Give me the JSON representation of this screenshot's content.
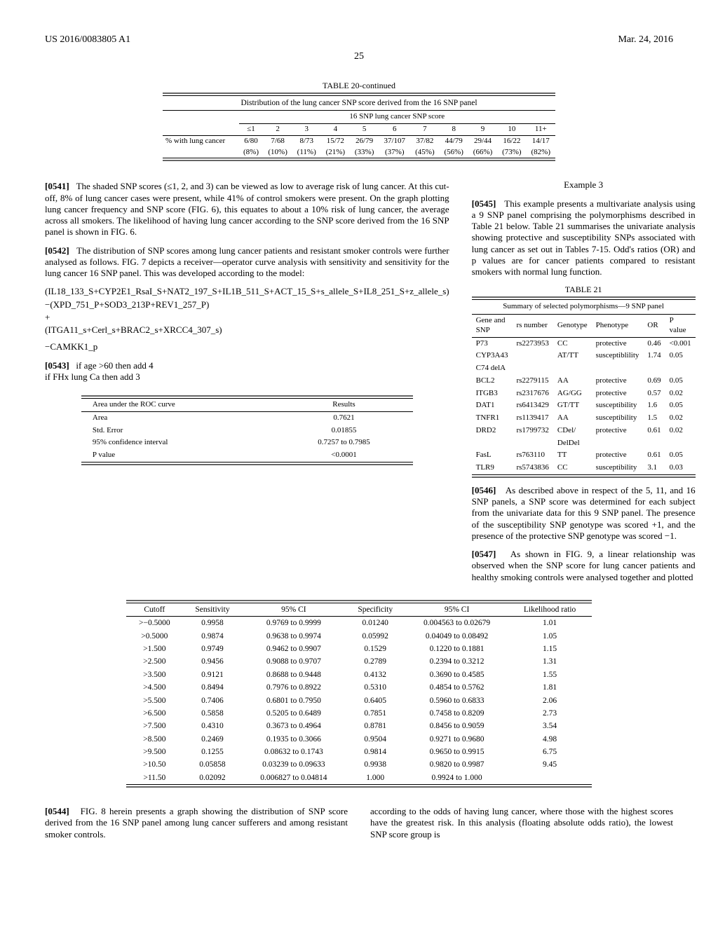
{
  "header": {
    "pub_number": "US 2016/0083805 A1",
    "pub_date": "Mar. 24, 2016"
  },
  "page_number": "25",
  "table20": {
    "title": "TABLE 20-continued",
    "caption": "Distribution of the lung cancer SNP score derived from the 16 SNP panel",
    "subhead": "16 SNP lung cancer SNP score",
    "cols": [
      "≤1",
      "2",
      "3",
      "4",
      "5",
      "6",
      "7",
      "8",
      "9",
      "10",
      "11+"
    ],
    "row_label": "% with lung cancer",
    "row_line1": [
      "6/80",
      "7/68",
      "8/73",
      "15/72",
      "26/79",
      "37/107",
      "37/82",
      "44/79",
      "29/44",
      "16/22",
      "14/17"
    ],
    "row_line2": [
      "(8%)",
      "(10%)",
      "(11%)",
      "(21%)",
      "(33%)",
      "(37%)",
      "(45%)",
      "(56%)",
      "(66%)",
      "(73%)",
      "(82%)"
    ]
  },
  "left": {
    "p0541": "The shaded SNP scores (≤1, 2, and 3) can be viewed as low to average risk of lung cancer. At this cut-off, 8% of lung cancer cases were present, while 41% of control smokers were present. On the graph plotting lung cancer frequency and SNP score (FIG. 6), this equates to about a 10% risk of lung cancer, the average across all smokers. The likelihood of having lung cancer according to the SNP score derived from the 16 SNP panel is shown in FIG. 6.",
    "p0542": "The distribution of SNP scores among lung cancer patients and resistant smoker controls were further analysed as follows. FIG. 7 depicts a receiver—operator curve analysis with sensitivity and sensitivity for the lung cancer 16 SNP panel. This was developed according to the model:",
    "model_l1": "(IL18_133_S+CYP2E1_RsaI_S+NAT2_197_S+IL1B_511_S+ACT_15_S+s_allele_S+IL8_251_S+z_allele_s)",
    "model_l2": "−(XPD_751_P+SOD3_213P+REV1_257_P)",
    "model_plus": "+",
    "model_l3": "(ITGA11_s+Cerl_s+BRAC2_s+XRCC4_307_s)",
    "model_l4": "−CAMKK1_p",
    "p0543_l1": "if age >60 then add 4",
    "p0543_l2": "if FHx lung Ca then add 3",
    "roc": {
      "title_left": "Area under the ROC curve",
      "title_right": "Results",
      "rows": [
        [
          "Area",
          "0.7621"
        ],
        [
          "Std. Error",
          "0.01855"
        ],
        [
          "95% confidence interval",
          "0.7257 to 0.7985"
        ],
        [
          "P value",
          "<0.0001"
        ]
      ]
    }
  },
  "right": {
    "example_label": "Example 3",
    "p0545": "This example presents a multivariate analysis using a 9 SNP panel comprising the polymorphisms described in Table 21 below. Table 21 summarises the univariate analysis showing protective and susceptibility SNPs associated with lung cancer as set out in Tables 7-15. Odd's ratios (OR) and p values are for cancer patients compared to resistant smokers with normal lung function.",
    "table21": {
      "title": "TABLE 21",
      "caption": "Summary of selected polymorphisms—9 SNP panel",
      "headers": [
        "Gene and SNP",
        "rs number",
        "Genotype",
        "Phenotype",
        "OR",
        "P value"
      ],
      "rows": [
        [
          "P73",
          "rs2273953",
          "CC",
          "protective",
          "0.46",
          "<0.001"
        ],
        [
          "CYP3A43",
          "",
          "AT/TT",
          "susceptiblility",
          "1.74",
          "0.05"
        ],
        [
          "C74 delA",
          "",
          "",
          "",
          "",
          ""
        ],
        [
          "BCL2",
          "rs2279115",
          "AA",
          "protective",
          "0.69",
          "0.05"
        ],
        [
          "ITGB3",
          "rs2317676",
          "AG/GG",
          "protective",
          "0.57",
          "0.02"
        ],
        [
          "DAT1",
          "rs6413429",
          "GT/TT",
          "susceptibility",
          "1.6",
          "0.05"
        ],
        [
          "TNFR1",
          "rs1139417",
          "AA",
          "susceptibility",
          "1.5",
          "0.02"
        ],
        [
          "DRD2",
          "rs1799732",
          "CDel/",
          "protective",
          "0.61",
          "0.02"
        ],
        [
          "",
          "",
          "DelDel",
          "",
          "",
          ""
        ],
        [
          "FasL",
          "rs763110",
          "TT",
          "protective",
          "0.61",
          "0.05"
        ],
        [
          "TLR9",
          "rs5743836",
          "CC",
          "susceptibility",
          "3.1",
          "0.03"
        ]
      ]
    },
    "p0546": "As described above in respect of the 5, 11, and 16 SNP panels, a SNP score was determined for each subject from the univariate data for this 9 SNP panel. The presence of the susceptibility SNP genotype was scored +1, and the presence of the protective SNP genotype was scored −1.",
    "p0547": "As shown in FIG. 9, a linear relationship was observed when the SNP score for lung cancer patients and healthy smoking controls were analysed together and plotted"
  },
  "sens_table": {
    "headers": [
      "Cutoff",
      "Sensitivity",
      "95% CI",
      "Specificity",
      "95% CI",
      "Likelihood ratio"
    ],
    "rows": [
      [
        ">−0.5000",
        "0.9958",
        "0.9769 to 0.9999",
        "0.01240",
        "0.004563 to 0.02679",
        "1.01"
      ],
      [
        ">0.5000",
        "0.9874",
        "0.9638 to 0.9974",
        "0.05992",
        "0.04049 to 0.08492",
        "1.05"
      ],
      [
        ">1.500",
        "0.9749",
        "0.9462 to 0.9907",
        "0.1529",
        "0.1220 to 0.1881",
        "1.15"
      ],
      [
        ">2.500",
        "0.9456",
        "0.9088 to 0.9707",
        "0.2789",
        "0.2394 to 0.3212",
        "1.31"
      ],
      [
        ">3.500",
        "0.9121",
        "0.8688 to 0.9448",
        "0.4132",
        "0.3690 to 0.4585",
        "1.55"
      ],
      [
        ">4.500",
        "0.8494",
        "0.7976 to 0.8922",
        "0.5310",
        "0.4854 to 0.5762",
        "1.81"
      ],
      [
        ">5.500",
        "0.7406",
        "0.6801 to 0.7950",
        "0.6405",
        "0.5960 to 0.6833",
        "2.06"
      ],
      [
        ">6.500",
        "0.5858",
        "0.5205 to 0.6489",
        "0.7851",
        "0.7458 to 0.8209",
        "2.73"
      ],
      [
        ">7.500",
        "0.4310",
        "0.3673 to 0.4964",
        "0.8781",
        "0.8456 to 0.9059",
        "3.54"
      ],
      [
        ">8.500",
        "0.2469",
        "0.1935 to 0.3066",
        "0.9504",
        "0.9271 to 0.9680",
        "4.98"
      ],
      [
        ">9.500",
        "0.1255",
        "0.08632 to 0.1743",
        "0.9814",
        "0.9650 to 0.9915",
        "6.75"
      ],
      [
        ">10.50",
        "0.05858",
        "0.03239 to 0.09633",
        "0.9938",
        "0.9820 to 0.9987",
        "9.45"
      ],
      [
        ">11.50",
        "0.02092",
        "0.006827 to 0.04814",
        "1.000",
        "0.9924 to 1.000",
        ""
      ]
    ]
  },
  "bottom": {
    "p0544": "FIG. 8 herein presents a graph showing the distribution of SNP score derived from the 16 SNP panel among lung cancer sufferers and among resistant smoker controls.",
    "right_cont": "according to the odds of having lung cancer, where those with the highest scores have the greatest risk. In this analysis (floating absolute odds ratio), the lowest SNP score group is"
  },
  "labels": {
    "p0541": "[0541]",
    "p0542": "[0542]",
    "p0543": "[0543]",
    "p0544": "[0544]",
    "p0545": "[0545]",
    "p0546": "[0546]",
    "p0547": "[0547]"
  }
}
